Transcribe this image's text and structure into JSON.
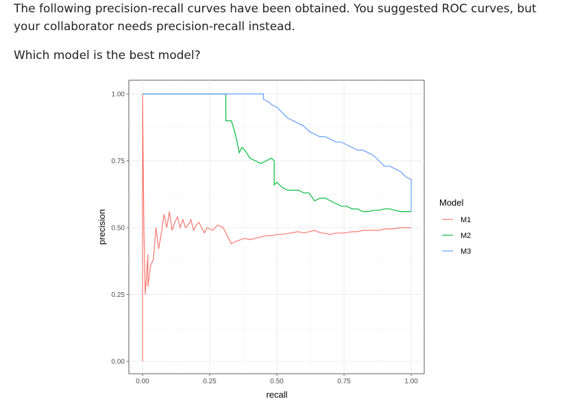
{
  "question": {
    "line1": "The following precision-recall curves have been obtained. You suggested ROC curves, but your collaborator needs precision-recall instead.",
    "line2": "Which model is the best model?"
  },
  "chart_data": {
    "type": "line",
    "xlabel": "recall",
    "ylabel": "precision",
    "xlim": [
      0,
      1
    ],
    "ylim": [
      0,
      1
    ],
    "x_ticks": [
      "0.00",
      "0.25",
      "0.50",
      "0.75",
      "1.00"
    ],
    "y_ticks": [
      "0.00",
      "0.25",
      "0.50",
      "0.75",
      "1.00"
    ],
    "grid": true,
    "legend": {
      "title": "Model",
      "placement": "right"
    },
    "series": [
      {
        "name": "M1",
        "color": "#F8766D",
        "points": [
          [
            0.0,
            0.0
          ],
          [
            0.0,
            1.0
          ],
          [
            0.005,
            0.5
          ],
          [
            0.01,
            0.25
          ],
          [
            0.02,
            0.4
          ],
          [
            0.02,
            0.28
          ],
          [
            0.03,
            0.36
          ],
          [
            0.04,
            0.38
          ],
          [
            0.05,
            0.5
          ],
          [
            0.06,
            0.42
          ],
          [
            0.07,
            0.48
          ],
          [
            0.08,
            0.55
          ],
          [
            0.09,
            0.5
          ],
          [
            0.1,
            0.56
          ],
          [
            0.11,
            0.49
          ],
          [
            0.12,
            0.52
          ],
          [
            0.13,
            0.54
          ],
          [
            0.14,
            0.5
          ],
          [
            0.15,
            0.53
          ],
          [
            0.16,
            0.5
          ],
          [
            0.17,
            0.51
          ],
          [
            0.18,
            0.53
          ],
          [
            0.19,
            0.49
          ],
          [
            0.2,
            0.51
          ],
          [
            0.21,
            0.52
          ],
          [
            0.22,
            0.5
          ],
          [
            0.23,
            0.48
          ],
          [
            0.24,
            0.5
          ],
          [
            0.26,
            0.49
          ],
          [
            0.28,
            0.51
          ],
          [
            0.3,
            0.5
          ],
          [
            0.31,
            0.48
          ],
          [
            0.32,
            0.46
          ],
          [
            0.33,
            0.44
          ],
          [
            0.35,
            0.45
          ],
          [
            0.38,
            0.46
          ],
          [
            0.4,
            0.455
          ],
          [
            0.42,
            0.46
          ],
          [
            0.44,
            0.465
          ],
          [
            0.46,
            0.47
          ],
          [
            0.48,
            0.47
          ],
          [
            0.5,
            0.475
          ],
          [
            0.52,
            0.475
          ],
          [
            0.55,
            0.48
          ],
          [
            0.58,
            0.485
          ],
          [
            0.6,
            0.48
          ],
          [
            0.62,
            0.485
          ],
          [
            0.64,
            0.49
          ],
          [
            0.65,
            0.485
          ],
          [
            0.67,
            0.48
          ],
          [
            0.7,
            0.475
          ],
          [
            0.72,
            0.48
          ],
          [
            0.75,
            0.48
          ],
          [
            0.78,
            0.485
          ],
          [
            0.8,
            0.485
          ],
          [
            0.82,
            0.49
          ],
          [
            0.85,
            0.49
          ],
          [
            0.88,
            0.49
          ],
          [
            0.9,
            0.495
          ],
          [
            0.93,
            0.495
          ],
          [
            0.96,
            0.5
          ],
          [
            0.98,
            0.5
          ],
          [
            1.0,
            0.5
          ]
        ]
      },
      {
        "name": "M2",
        "color": "#00BA38",
        "points": [
          [
            0.0,
            1.0
          ],
          [
            0.31,
            1.0
          ],
          [
            0.31,
            0.9
          ],
          [
            0.33,
            0.9
          ],
          [
            0.34,
            0.87
          ],
          [
            0.35,
            0.83
          ],
          [
            0.36,
            0.78
          ],
          [
            0.37,
            0.8
          ],
          [
            0.38,
            0.79
          ],
          [
            0.4,
            0.76
          ],
          [
            0.42,
            0.75
          ],
          [
            0.44,
            0.74
          ],
          [
            0.46,
            0.75
          ],
          [
            0.48,
            0.76
          ],
          [
            0.49,
            0.75
          ],
          [
            0.49,
            0.66
          ],
          [
            0.5,
            0.67
          ],
          [
            0.52,
            0.65
          ],
          [
            0.54,
            0.64
          ],
          [
            0.56,
            0.64
          ],
          [
            0.58,
            0.64
          ],
          [
            0.6,
            0.63
          ],
          [
            0.62,
            0.63
          ],
          [
            0.64,
            0.6
          ],
          [
            0.66,
            0.61
          ],
          [
            0.68,
            0.61
          ],
          [
            0.7,
            0.6
          ],
          [
            0.72,
            0.59
          ],
          [
            0.74,
            0.58
          ],
          [
            0.76,
            0.58
          ],
          [
            0.78,
            0.57
          ],
          [
            0.8,
            0.57
          ],
          [
            0.82,
            0.56
          ],
          [
            0.84,
            0.56
          ],
          [
            0.86,
            0.565
          ],
          [
            0.88,
            0.565
          ],
          [
            0.9,
            0.57
          ],
          [
            0.92,
            0.57
          ],
          [
            0.94,
            0.565
          ],
          [
            0.96,
            0.56
          ],
          [
            0.98,
            0.56
          ],
          [
            1.0,
            0.56
          ]
        ]
      },
      {
        "name": "M3",
        "color": "#619CFF",
        "points": [
          [
            0.0,
            1.0
          ],
          [
            0.45,
            1.0
          ],
          [
            0.45,
            0.98
          ],
          [
            0.47,
            0.97
          ],
          [
            0.48,
            0.96
          ],
          [
            0.5,
            0.95
          ],
          [
            0.52,
            0.93
          ],
          [
            0.54,
            0.91
          ],
          [
            0.56,
            0.9
          ],
          [
            0.58,
            0.89
          ],
          [
            0.6,
            0.88
          ],
          [
            0.62,
            0.86
          ],
          [
            0.64,
            0.85
          ],
          [
            0.66,
            0.84
          ],
          [
            0.68,
            0.84
          ],
          [
            0.7,
            0.83
          ],
          [
            0.72,
            0.82
          ],
          [
            0.74,
            0.82
          ],
          [
            0.76,
            0.81
          ],
          [
            0.78,
            0.8
          ],
          [
            0.8,
            0.79
          ],
          [
            0.82,
            0.79
          ],
          [
            0.84,
            0.78
          ],
          [
            0.86,
            0.77
          ],
          [
            0.88,
            0.75
          ],
          [
            0.9,
            0.73
          ],
          [
            0.92,
            0.73
          ],
          [
            0.94,
            0.72
          ],
          [
            0.96,
            0.71
          ],
          [
            0.98,
            0.69
          ],
          [
            1.0,
            0.68
          ],
          [
            1.0,
            0.56
          ]
        ]
      }
    ]
  }
}
